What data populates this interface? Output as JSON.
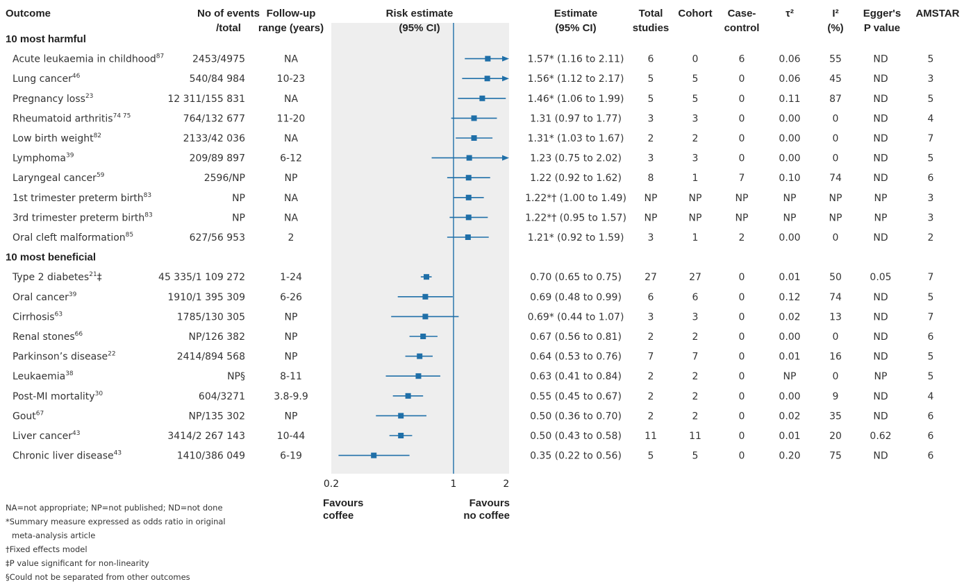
{
  "headers": {
    "outcome": "Outcome",
    "events": [
      "No of events",
      "/total"
    ],
    "followup": [
      "Follow-up",
      "range (years)"
    ],
    "risk": [
      "Risk estimate",
      "(95% CI)"
    ],
    "estimate": [
      "Estimate",
      "(95% CI)"
    ],
    "total_studies": [
      "Total",
      "studies"
    ],
    "cohort": [
      "Cohort"
    ],
    "casecontrol": [
      "Case-",
      "control"
    ],
    "tau": [
      "τ²"
    ],
    "i2": [
      "I²",
      "(%)"
    ],
    "egger": [
      "Egger's",
      "P value"
    ],
    "amstar": [
      "AMSTAR"
    ]
  },
  "chart_data": {
    "type": "forest",
    "xscale": "log",
    "xlim": [
      0.2,
      2
    ],
    "xticks": [
      0.2,
      1,
      2
    ],
    "xtick_labels": [
      "0.2",
      "1",
      "2"
    ],
    "reference_line": 1,
    "favours_left": [
      "Favours",
      "coffee"
    ],
    "favours_right": [
      "Favours",
      "no coffee"
    ],
    "color": "#1f6fa8",
    "groups": [
      {
        "label": "10 most harmful",
        "rows": [
          {
            "outcome": "Acute leukaemia in childhood",
            "ref": "87",
            "events": "2453/4975",
            "followup": "NA",
            "est": 1.57,
            "lo": 1.16,
            "hi": 2.11,
            "estimate_text": "1.57* (1.16 to 2.11)",
            "total": "6",
            "cohort": "0",
            "cc": "6",
            "tau": "0.06",
            "i2": "55",
            "egger": "ND",
            "amstar": "5"
          },
          {
            "outcome": "Lung cancer",
            "ref": "46",
            "events": "540/84 984",
            "followup": "10-23",
            "est": 1.56,
            "lo": 1.12,
            "hi": 2.17,
            "estimate_text": "1.56* (1.12 to 2.17)",
            "total": "5",
            "cohort": "5",
            "cc": "0",
            "tau": "0.06",
            "i2": "45",
            "egger": "ND",
            "amstar": "3"
          },
          {
            "outcome": "Pregnancy loss",
            "ref": "23",
            "events": "12 311/155 831",
            "followup": "NA",
            "est": 1.46,
            "lo": 1.06,
            "hi": 1.99,
            "estimate_text": "1.46* (1.06 to 1.99)",
            "total": "5",
            "cohort": "5",
            "cc": "0",
            "tau": "0.11",
            "i2": "87",
            "egger": "ND",
            "amstar": "5"
          },
          {
            "outcome": "Rheumatoid arthritis",
            "ref": "74 75",
            "events": "764/132 677",
            "followup": "11-20",
            "est": 1.31,
            "lo": 0.97,
            "hi": 1.77,
            "estimate_text": "1.31 (0.97 to 1.77)",
            "total": "3",
            "cohort": "3",
            "cc": "0",
            "tau": "0.00",
            "i2": "0",
            "egger": "ND",
            "amstar": "4"
          },
          {
            "outcome": "Low birth weight",
            "ref": "82",
            "events": "2133/42 036",
            "followup": "NA",
            "est": 1.31,
            "lo": 1.03,
            "hi": 1.67,
            "estimate_text": "1.31* (1.03 to 1.67)",
            "total": "2",
            "cohort": "2",
            "cc": "0",
            "tau": "0.00",
            "i2": "0",
            "egger": "ND",
            "amstar": "7"
          },
          {
            "outcome": "Lymphoma",
            "ref": "39",
            "events": "209/89 897",
            "followup": "6-12",
            "est": 1.23,
            "lo": 0.75,
            "hi": 2.02,
            "estimate_text": "1.23 (0.75 to 2.02)",
            "total": "3",
            "cohort": "3",
            "cc": "0",
            "tau": "0.00",
            "i2": "0",
            "egger": "ND",
            "amstar": "5"
          },
          {
            "outcome": "Laryngeal cancer",
            "ref": "59",
            "events": "2596/NP",
            "followup": "NP",
            "est": 1.22,
            "lo": 0.92,
            "hi": 1.62,
            "estimate_text": "1.22 (0.92 to 1.62)",
            "total": "8",
            "cohort": "1",
            "cc": "7",
            "tau": "0.10",
            "i2": "74",
            "egger": "ND",
            "amstar": "6"
          },
          {
            "outcome": "1st trimester preterm birth",
            "ref": "83",
            "events": "NP",
            "followup": "NA",
            "est": 1.22,
            "lo": 1.0,
            "hi": 1.49,
            "estimate_text": "1.22*† (1.00 to 1.49)",
            "total": "NP",
            "cohort": "NP",
            "cc": "NP",
            "tau": "NP",
            "i2": "NP",
            "egger": "NP",
            "amstar": "3"
          },
          {
            "outcome": "3rd trimester preterm birth",
            "ref": "83",
            "events": "NP",
            "followup": "NA",
            "est": 1.22,
            "lo": 0.95,
            "hi": 1.57,
            "estimate_text": "1.22*† (0.95 to 1.57)",
            "total": "NP",
            "cohort": "NP",
            "cc": "NP",
            "tau": "NP",
            "i2": "NP",
            "egger": "NP",
            "amstar": "3"
          },
          {
            "outcome": "Oral cleft malformation",
            "ref": "85",
            "events": "627/56 953",
            "followup": "2",
            "est": 1.21,
            "lo": 0.92,
            "hi": 1.59,
            "estimate_text": "1.21* (0.92 to 1.59)",
            "total": "3",
            "cohort": "1",
            "cc": "2",
            "tau": "0.00",
            "i2": "0",
            "egger": "ND",
            "amstar": "2"
          }
        ]
      },
      {
        "label": "10 most beneficial",
        "rows": [
          {
            "outcome": "Type 2 diabetes",
            "ref": "21",
            "suffix": "‡",
            "events": "45 335/1 109 272",
            "followup": "1-24",
            "est": 0.7,
            "lo": 0.65,
            "hi": 0.75,
            "estimate_text": "0.70 (0.65 to 0.75)",
            "total": "27",
            "cohort": "27",
            "cc": "0",
            "tau": "0.01",
            "i2": "50",
            "egger": "0.05",
            "amstar": "7"
          },
          {
            "outcome": "Oral cancer",
            "ref": "39",
            "events": "1910/1 395 309",
            "followup": "6-26",
            "est": 0.69,
            "lo": 0.48,
            "hi": 0.99,
            "estimate_text": "0.69 (0.48 to 0.99)",
            "total": "6",
            "cohort": "6",
            "cc": "0",
            "tau": "0.12",
            "i2": "74",
            "egger": "ND",
            "amstar": "5"
          },
          {
            "outcome": "Cirrhosis",
            "ref": "63",
            "events": "1785/130 305",
            "followup": "NP",
            "est": 0.69,
            "lo": 0.44,
            "hi": 1.07,
            "estimate_text": "0.69* (0.44 to 1.07)",
            "total": "3",
            "cohort": "3",
            "cc": "0",
            "tau": "0.02",
            "i2": "13",
            "egger": "ND",
            "amstar": "7"
          },
          {
            "outcome": "Renal stones",
            "ref": "66",
            "events": "NP/126 382",
            "followup": "NP",
            "est": 0.67,
            "lo": 0.56,
            "hi": 0.81,
            "estimate_text": "0.67 (0.56 to 0.81)",
            "total": "2",
            "cohort": "2",
            "cc": "0",
            "tau": "0.00",
            "i2": "0",
            "egger": "ND",
            "amstar": "6"
          },
          {
            "outcome": "Parkinson’s disease",
            "ref": "22",
            "events": "2414/894 568",
            "followup": "NP",
            "est": 0.64,
            "lo": 0.53,
            "hi": 0.76,
            "estimate_text": "0.64 (0.53 to 0.76)",
            "total": "7",
            "cohort": "7",
            "cc": "0",
            "tau": "0.01",
            "i2": "16",
            "egger": "ND",
            "amstar": "5"
          },
          {
            "outcome": "Leukaemia",
            "ref": "38",
            "events": "NP§",
            "followup": "8-11",
            "est": 0.63,
            "lo": 0.41,
            "hi": 0.84,
            "estimate_text": "0.63 (0.41 to 0.84)",
            "total": "2",
            "cohort": "2",
            "cc": "0",
            "tau": "NP",
            "i2": "0",
            "egger": "NP",
            "amstar": "5"
          },
          {
            "outcome": "Post-MI mortality",
            "ref": "30",
            "events": "604/3271",
            "followup": "3.8-9.9",
            "est": 0.55,
            "lo": 0.45,
            "hi": 0.67,
            "estimate_text": "0.55 (0.45 to 0.67)",
            "total": "2",
            "cohort": "2",
            "cc": "0",
            "tau": "0.00",
            "i2": "9",
            "egger": "ND",
            "amstar": "4"
          },
          {
            "outcome": "Gout",
            "ref": "67",
            "events": "NP/135 302",
            "followup": "NP",
            "est": 0.5,
            "lo": 0.36,
            "hi": 0.7,
            "estimate_text": "0.50 (0.36 to 0.70)",
            "total": "2",
            "cohort": "2",
            "cc": "0",
            "tau": "0.02",
            "i2": "35",
            "egger": "ND",
            "amstar": "6"
          },
          {
            "outcome": "Liver cancer",
            "ref": "43",
            "events": "3414/2 267 143",
            "followup": "10-44",
            "est": 0.5,
            "lo": 0.43,
            "hi": 0.58,
            "estimate_text": "0.50 (0.43 to 0.58)",
            "total": "11",
            "cohort": "11",
            "cc": "0",
            "tau": "0.01",
            "i2": "20",
            "egger": "0.62",
            "amstar": "6"
          },
          {
            "outcome": "Chronic liver disease",
            "ref": "43",
            "events": "1410/386 049",
            "followup": "6-19",
            "est": 0.35,
            "lo": 0.22,
            "hi": 0.56,
            "estimate_text": "0.35 (0.22 to 0.56)",
            "total": "5",
            "cohort": "5",
            "cc": "0",
            "tau": "0.20",
            "i2": "75",
            "egger": "ND",
            "amstar": "6"
          }
        ]
      }
    ]
  },
  "footnotes": [
    "NA=not appropriate; NP=not published; ND=not done",
    "*Summary measure expressed as odds ratio in original",
    "meta-analysis article",
    "†Fixed effects model",
    "‡P value significant for non-linearity",
    "§Could not be separated from other outcomes"
  ]
}
